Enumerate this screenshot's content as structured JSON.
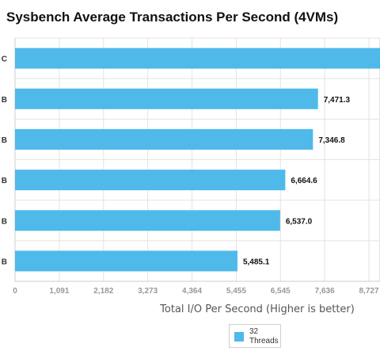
{
  "chart_data": {
    "type": "bar",
    "orientation": "horizontal",
    "title": "Sysbench Average Transactions Per Second (4VMs)",
    "xlabel": "Total I/O Per Second (Higher is better)",
    "ylabel": "",
    "categories": [
      "C",
      "B",
      "B",
      "B",
      "B",
      "B"
    ],
    "series": [
      {
        "name": "32 Threads",
        "color": "#4fb9ea",
        "values": [
          9000,
          7471.3,
          7346.8,
          6664.6,
          6537.0,
          5485.1
        ],
        "labels": [
          "",
          "7,471.3",
          "7,346.8",
          "6,664.6",
          "6,537.0",
          "5,485.1"
        ]
      }
    ],
    "xlim": [
      0,
      9000
    ],
    "ticks": [
      {
        "value": 0,
        "label": "0"
      },
      {
        "value": 1091,
        "label": "1,091"
      },
      {
        "value": 2182,
        "label": "2,182"
      },
      {
        "value": 3273,
        "label": "3,273"
      },
      {
        "value": 4364,
        "label": "4,364"
      },
      {
        "value": 5455,
        "label": "5,455"
      },
      {
        "value": 6545,
        "label": "6,545"
      },
      {
        "value": 7636,
        "label": "7,636"
      },
      {
        "value": 8727,
        "label": "8,727"
      }
    ],
    "grid": true,
    "legend_position": "bottom"
  },
  "legend": {
    "label": "32 Threads"
  }
}
